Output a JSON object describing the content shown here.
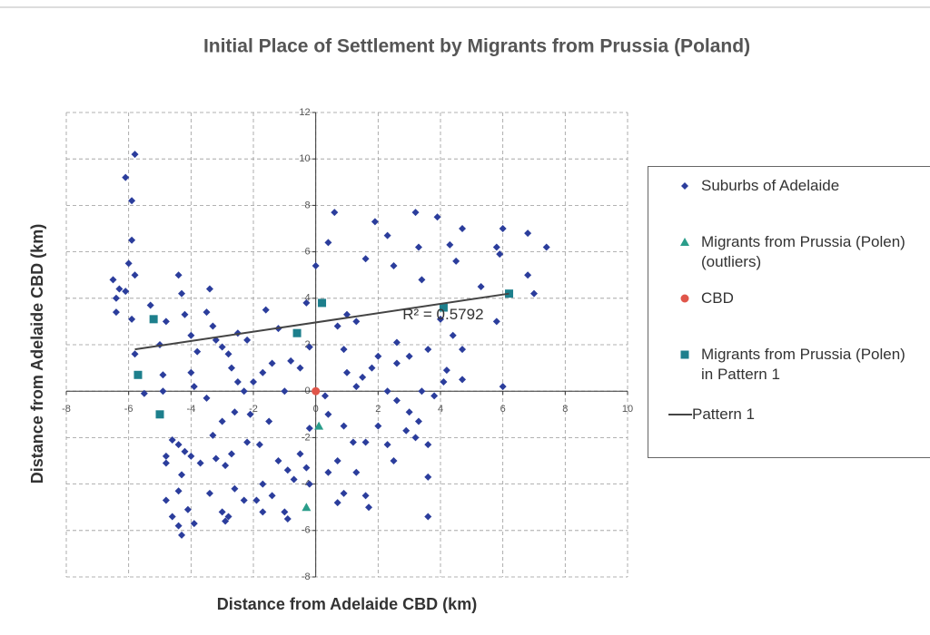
{
  "chart_data": {
    "type": "scatter",
    "title": "Initial Place of Settlement by Migrants from Prussia (Poland)",
    "xlabel": "Distance from Adelaide CBD (km)",
    "ylabel": "Distance from Adelaide CBD (km)",
    "xlim": [
      -8,
      10
    ],
    "ylim": [
      -8,
      12
    ],
    "xticks": [
      -8,
      -6,
      -4,
      -2,
      0,
      2,
      4,
      6,
      8,
      10
    ],
    "yticks": [
      -8,
      -6,
      -4,
      -2,
      0,
      2,
      4,
      6,
      8,
      10,
      12
    ],
    "grid": true,
    "annotation": "R² = 0.5792",
    "series": [
      {
        "name": "Suburbs of Adelaide",
        "color": "#2b3d9c",
        "marker": "diamond",
        "x": [
          -5.8,
          -6.1,
          -5.9,
          -5.9,
          -6.0,
          -5.8,
          -6.5,
          -6.3,
          -6.1,
          -6.4,
          -6.4,
          -5.9,
          -5.3,
          -5.8,
          -5.0,
          -4.8,
          -4.4,
          -4.3,
          -3.4,
          -4.2,
          -3.5,
          -4.0,
          -3.8,
          -3.3,
          -3.2,
          -3.0,
          -2.8,
          -2.7,
          -2.5,
          -4.9,
          -4.0,
          -3.9,
          -5.5,
          -4.9,
          -2.2,
          -2.0,
          -2.5,
          -1.6,
          -1.4,
          -1.2,
          -0.8,
          -0.5,
          -0.3,
          0.0,
          0.4,
          0.6,
          1.0,
          0.7,
          0.9,
          1.3,
          1.6,
          1.9,
          2.3,
          2.5,
          3.2,
          3.3,
          3.4,
          3.9,
          4.3,
          4.5,
          4.7,
          5.3,
          5.8,
          5.9,
          6.0,
          6.8,
          7.0,
          7.4,
          6.8,
          5.8,
          6.0,
          4.7,
          4.4,
          4.0,
          4.1,
          4.7,
          3.6,
          3.0,
          2.6,
          2.0,
          1.8,
          1.5,
          1.3,
          2.3,
          2.6,
          3.0,
          3.4,
          3.3,
          3.2,
          2.9,
          3.6,
          2.0,
          1.6,
          1.2,
          0.9,
          0.4,
          0.7,
          0.4,
          0.7,
          1.3,
          1.6,
          1.7,
          2.5,
          3.6,
          3.6,
          2.3,
          0.3,
          -0.2,
          -0.5,
          -0.3,
          -0.7,
          -0.9,
          -1.2,
          -1.4,
          -1.7,
          -1.9,
          -2.3,
          -2.6,
          -2.8,
          -2.9,
          -2.7,
          -2.2,
          -1.8,
          -1.5,
          -2.1,
          -2.6,
          -3.0,
          -3.3,
          -3.5,
          -3.2,
          -3.7,
          -4.0,
          -4.2,
          -4.4,
          -4.6,
          -4.8,
          -4.8,
          -4.3,
          -4.4,
          -4.8,
          -4.1,
          -3.9,
          -4.4,
          -4.3,
          -4.6,
          -3.4,
          -3.0,
          -2.9,
          -1.7,
          -1.0,
          -0.9,
          -0.2,
          0.9,
          1.0,
          2.6,
          -0.2,
          -1.0,
          -1.7,
          -2.3,
          3.8,
          4.2
        ],
        "y": [
          10.2,
          9.2,
          8.2,
          6.5,
          5.5,
          5.0,
          4.8,
          4.4,
          4.3,
          4.0,
          3.4,
          3.1,
          3.7,
          1.6,
          2.0,
          3.0,
          5.0,
          4.2,
          4.4,
          3.3,
          3.4,
          2.4,
          1.7,
          2.8,
          2.2,
          1.9,
          1.6,
          1.0,
          2.5,
          0.7,
          0.8,
          0.2,
          -0.1,
          0.0,
          2.2,
          0.4,
          0.4,
          3.5,
          1.2,
          2.7,
          1.3,
          1.0,
          3.8,
          5.4,
          6.4,
          7.7,
          3.3,
          2.8,
          1.8,
          3.0,
          5.7,
          7.3,
          6.7,
          5.4,
          7.7,
          6.2,
          4.8,
          7.5,
          6.3,
          5.6,
          7.0,
          4.5,
          6.2,
          5.9,
          7.0,
          6.8,
          4.2,
          6.2,
          5.0,
          3.0,
          0.2,
          1.8,
          2.4,
          3.1,
          0.4,
          0.5,
          1.8,
          1.5,
          2.1,
          1.5,
          1.0,
          0.6,
          0.2,
          0.0,
          -0.4,
          -0.9,
          0.0,
          -1.3,
          -2.0,
          -1.7,
          -2.3,
          -1.5,
          -2.2,
          -2.2,
          -1.5,
          -1.0,
          -3.0,
          -3.5,
          -4.8,
          -3.5,
          -4.5,
          -5.0,
          -3.0,
          -3.7,
          -5.4,
          -2.3,
          -0.2,
          -1.6,
          -2.7,
          -3.3,
          -3.8,
          -3.4,
          -3.0,
          -4.5,
          -4.0,
          -4.7,
          -4.7,
          -4.2,
          -5.4,
          -3.2,
          -2.7,
          -2.2,
          -2.3,
          -1.3,
          -1.0,
          -0.9,
          -1.3,
          -1.9,
          -0.3,
          -2.9,
          -3.1,
          -2.8,
          -2.6,
          -2.3,
          -2.1,
          -2.8,
          -3.1,
          -3.6,
          -4.3,
          -4.7,
          -5.1,
          -5.7,
          -5.8,
          -6.2,
          -5.4,
          -4.4,
          -5.2,
          -5.6,
          -5.2,
          -5.2,
          -5.5,
          -4.0,
          -4.4,
          0.8,
          1.2,
          1.9,
          0.0,
          0.8,
          0.0,
          -0.2,
          0.9
        ]
      },
      {
        "name": "Migrants from Prussia (Polen) (outliers)",
        "color": "#2a9d8a",
        "marker": "triangle",
        "x": [
          0.1,
          -0.3
        ],
        "y": [
          -1.5,
          -5.0
        ]
      },
      {
        "name": "CBD",
        "color": "#e0564a",
        "marker": "circle",
        "x": [
          0
        ],
        "y": [
          0
        ]
      },
      {
        "name": "Migrants from Prussia (Polen) in Pattern 1",
        "color": "#1d7f8c",
        "marker": "square",
        "x": [
          -5.2,
          -5.7,
          -5.0,
          -0.6,
          0.2,
          4.1,
          6.2
        ],
        "y": [
          3.1,
          0.7,
          -1.0,
          2.5,
          3.8,
          3.6,
          4.2
        ]
      },
      {
        "name": "Pattern 1",
        "color": "#444444",
        "marker": "line",
        "x": [
          -5.8,
          6.2
        ],
        "y": [
          1.8,
          4.2
        ]
      }
    ]
  }
}
